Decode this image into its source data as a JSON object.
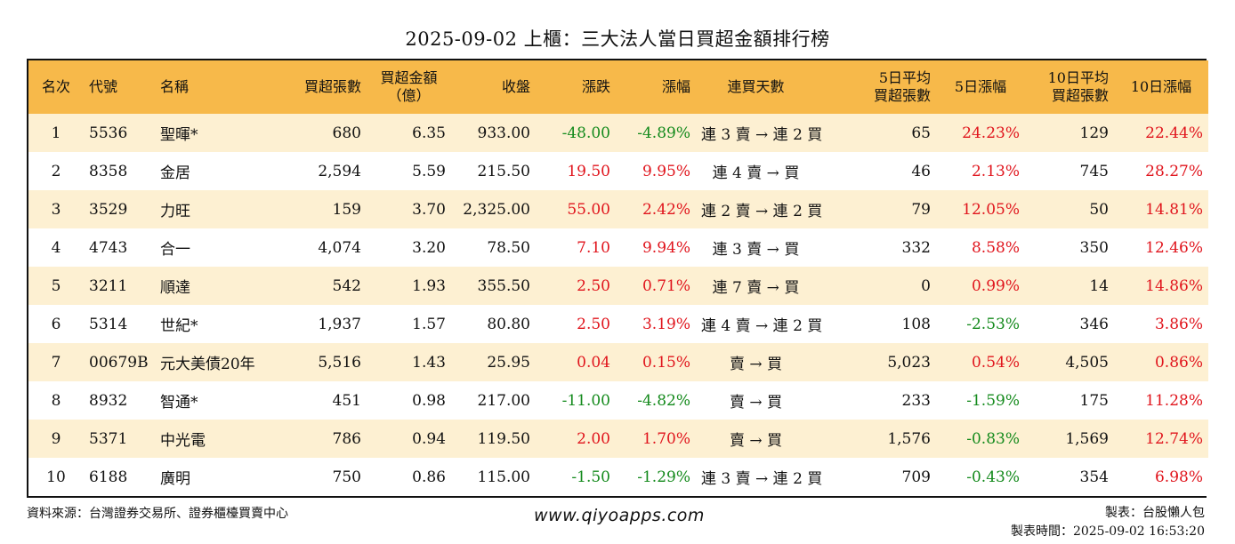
{
  "title": "2025-09-02 上櫃：三大法人當日買超金額排行榜",
  "columns": {
    "rank": "名次",
    "code": "代號",
    "name": "名稱",
    "buy_shares": "買超張數",
    "buy_amount_1": "買超金額",
    "buy_amount_2": "（億）",
    "close": "收盤",
    "change": "漲跌",
    "change_pct": "漲幅",
    "streak": "連買天數",
    "avg5_1": "5日平均",
    "avg5_2": "買超張數",
    "pct5": "5日漲幅",
    "avg10_1": "10日平均",
    "avg10_2": "買超張數",
    "pct10": "10日漲幅"
  },
  "rows": [
    {
      "rank": "1",
      "code": "5536",
      "name": "聖暉*",
      "buy_shares": "680",
      "buy_amount": "6.35",
      "close": "933.00",
      "change": "-48.00",
      "change_pct": "-4.89%",
      "streak": "連 3 賣 → 連 2 買",
      "avg5": "65",
      "pct5": "24.23%",
      "avg10": "129",
      "pct10": "22.44%"
    },
    {
      "rank": "2",
      "code": "8358",
      "name": "金居",
      "buy_shares": "2,594",
      "buy_amount": "5.59",
      "close": "215.50",
      "change": "19.50",
      "change_pct": "9.95%",
      "streak": "連 4 賣 → 買",
      "avg5": "46",
      "pct5": "2.13%",
      "avg10": "745",
      "pct10": "28.27%"
    },
    {
      "rank": "3",
      "code": "3529",
      "name": "力旺",
      "buy_shares": "159",
      "buy_amount": "3.70",
      "close": "2,325.00",
      "change": "55.00",
      "change_pct": "2.42%",
      "streak": "連 2 賣 → 連 2 買",
      "avg5": "79",
      "pct5": "12.05%",
      "avg10": "50",
      "pct10": "14.81%"
    },
    {
      "rank": "4",
      "code": "4743",
      "name": "合一",
      "buy_shares": "4,074",
      "buy_amount": "3.20",
      "close": "78.50",
      "change": "7.10",
      "change_pct": "9.94%",
      "streak": "連 3 賣 → 買",
      "avg5": "332",
      "pct5": "8.58%",
      "avg10": "350",
      "pct10": "12.46%"
    },
    {
      "rank": "5",
      "code": "3211",
      "name": "順達",
      "buy_shares": "542",
      "buy_amount": "1.93",
      "close": "355.50",
      "change": "2.50",
      "change_pct": "0.71%",
      "streak": "連 7 賣 → 買",
      "avg5": "0",
      "pct5": "0.99%",
      "avg10": "14",
      "pct10": "14.86%"
    },
    {
      "rank": "6",
      "code": "5314",
      "name": "世紀*",
      "buy_shares": "1,937",
      "buy_amount": "1.57",
      "close": "80.80",
      "change": "2.50",
      "change_pct": "3.19%",
      "streak": "連 4 賣 → 連 2 買",
      "avg5": "108",
      "pct5": "-2.53%",
      "avg10": "346",
      "pct10": "3.86%"
    },
    {
      "rank": "7",
      "code": "00679B",
      "name": "元大美債20年",
      "buy_shares": "5,516",
      "buy_amount": "1.43",
      "close": "25.95",
      "change": "0.04",
      "change_pct": "0.15%",
      "streak": "賣 → 買",
      "avg5": "5,023",
      "pct5": "0.54%",
      "avg10": "4,505",
      "pct10": "0.86%"
    },
    {
      "rank": "8",
      "code": "8932",
      "name": "智通*",
      "buy_shares": "451",
      "buy_amount": "0.98",
      "close": "217.00",
      "change": "-11.00",
      "change_pct": "-4.82%",
      "streak": "賣 → 買",
      "avg5": "233",
      "pct5": "-1.59%",
      "avg10": "175",
      "pct10": "11.28%"
    },
    {
      "rank": "9",
      "code": "5371",
      "name": "中光電",
      "buy_shares": "786",
      "buy_amount": "0.94",
      "close": "119.50",
      "change": "2.00",
      "change_pct": "1.70%",
      "streak": "賣 → 買",
      "avg5": "1,576",
      "pct5": "-0.83%",
      "avg10": "1,569",
      "pct10": "12.74%"
    },
    {
      "rank": "10",
      "code": "6188",
      "name": "廣明",
      "buy_shares": "750",
      "buy_amount": "0.86",
      "close": "115.00",
      "change": "-1.50",
      "change_pct": "-1.29%",
      "streak": "連 3 賣 → 連 2 買",
      "avg5": "709",
      "pct5": "-0.43%",
      "avg10": "354",
      "pct10": "6.98%"
    }
  ],
  "colors": {
    "header_bg": "#f7b94a",
    "odd_row_bg": "#fdf0d2",
    "up": "#e0141c",
    "down": "#148a1c"
  },
  "footer": {
    "source": "資料來源：台灣證券交易所、證券櫃檯買賣中心",
    "website": "www.qiyoapps.com",
    "maker": "製表：台股懶人包",
    "made_time": "製表時間：2025-09-02 16:53:20"
  }
}
